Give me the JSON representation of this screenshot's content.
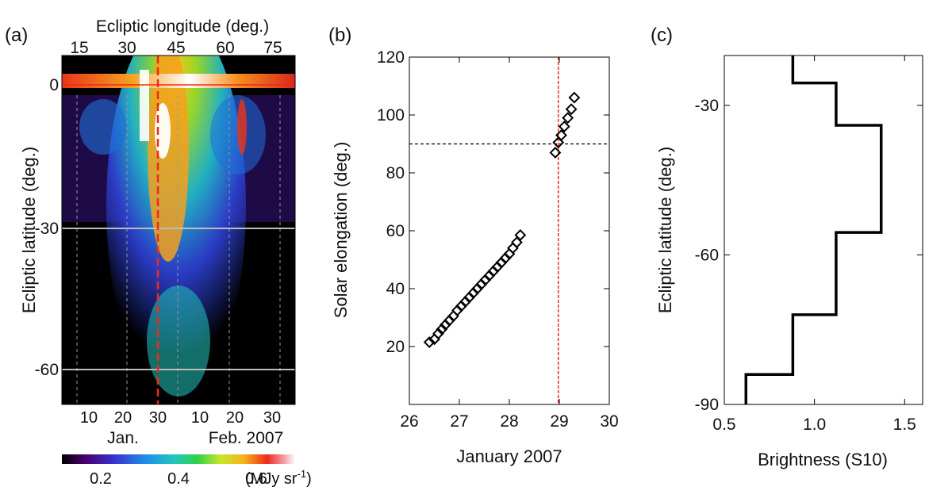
{
  "chart_data": [
    {
      "type": "heatmap",
      "panel_label": "(a)",
      "top_axis_label": "Ecliptic longitude (deg.)",
      "top_ticks": [
        "15",
        "30",
        "45",
        "60",
        "75"
      ],
      "ylabel": "Ecliptic latitude (deg.)",
      "y_ticks": [
        "0",
        "-30",
        "-60"
      ],
      "bottom_ticks": [
        "10",
        "20",
        "30",
        "10",
        "20",
        "30"
      ],
      "month_labels": [
        "Jan.",
        "Feb. 2007"
      ],
      "colorbar_ticks": [
        "0.2",
        "0.4",
        "0.6"
      ],
      "colorbar_unit": "(MJy sr",
      "colorbar_unit_exp": "-1",
      "colorbar_unit_close": ")",
      "colorbar_range": [
        0.1,
        0.7
      ],
      "marker_date": "2007-01-29",
      "grid": true
    },
    {
      "type": "scatter",
      "panel_label": "(b)",
      "xlabel": "January 2007",
      "ylabel": "Solar elongation (deg.)",
      "x_ticks": [
        "26",
        "27",
        "28",
        "29",
        "30"
      ],
      "y_ticks": [
        "20",
        "40",
        "60",
        "80",
        "100",
        "120"
      ],
      "xlim": [
        26,
        30
      ],
      "ylim": [
        0,
        120
      ],
      "hline_y": 90,
      "vline_x": 28.98,
      "points": [
        {
          "x": 26.4,
          "y": 21.5
        },
        {
          "x": 26.5,
          "y": 22.5
        },
        {
          "x": 26.58,
          "y": 24.5
        },
        {
          "x": 26.65,
          "y": 26.0
        },
        {
          "x": 26.72,
          "y": 27.5
        },
        {
          "x": 26.8,
          "y": 29.0
        },
        {
          "x": 26.88,
          "y": 30.5
        },
        {
          "x": 26.96,
          "y": 32.5
        },
        {
          "x": 27.04,
          "y": 34.0
        },
        {
          "x": 27.12,
          "y": 35.5
        },
        {
          "x": 27.2,
          "y": 37.0
        },
        {
          "x": 27.28,
          "y": 38.5
        },
        {
          "x": 27.36,
          "y": 40.0
        },
        {
          "x": 27.44,
          "y": 41.5
        },
        {
          "x": 27.52,
          "y": 43.0
        },
        {
          "x": 27.6,
          "y": 44.5
        },
        {
          "x": 27.68,
          "y": 46.0
        },
        {
          "x": 27.76,
          "y": 47.5
        },
        {
          "x": 27.84,
          "y": 49.0
        },
        {
          "x": 27.92,
          "y": 50.5
        },
        {
          "x": 28.0,
          "y": 52.0
        },
        {
          "x": 28.07,
          "y": 54.0
        },
        {
          "x": 28.15,
          "y": 56.0
        },
        {
          "x": 28.22,
          "y": 58.5
        },
        {
          "x": 28.92,
          "y": 87.0
        },
        {
          "x": 28.98,
          "y": 90.5
        },
        {
          "x": 29.04,
          "y": 93.0
        },
        {
          "x": 29.1,
          "y": 96.0
        },
        {
          "x": 29.17,
          "y": 99.0
        },
        {
          "x": 29.24,
          "y": 102.0
        },
        {
          "x": 29.3,
          "y": 106.0
        }
      ]
    },
    {
      "type": "line",
      "panel_label": "(c)",
      "xlabel": "Brightness (S10)",
      "ylabel": "Ecliptic latitude (deg.)",
      "x_ticks": [
        "0.5",
        "1.0",
        "1.5"
      ],
      "y_ticks": [
        "-30",
        "-60",
        "-90"
      ],
      "xlim": [
        0.5,
        1.6
      ],
      "ylim": [
        -90,
        -20
      ],
      "step_profile": [
        {
          "lat_top": -20,
          "lat_bottom": -25.5,
          "brightness": 0.88
        },
        {
          "lat_top": -25.5,
          "lat_bottom": -34,
          "brightness": 1.12
        },
        {
          "lat_top": -34,
          "lat_bottom": -55.5,
          "brightness": 1.37
        },
        {
          "lat_top": -55.5,
          "lat_bottom": -72,
          "brightness": 1.12
        },
        {
          "lat_top": -72,
          "lat_bottom": -84,
          "brightness": 0.88
        },
        {
          "lat_top": -84,
          "lat_bottom": -90,
          "brightness": 0.62
        }
      ]
    }
  ]
}
